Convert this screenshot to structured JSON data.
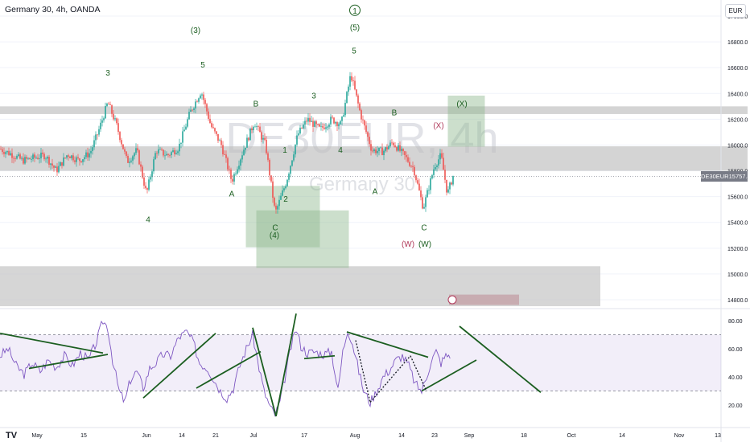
{
  "header": {
    "title": "Germany 30, 4h, OANDA",
    "currency": "EUR"
  },
  "watermark": {
    "symbol": "DE30EUR, 4h",
    "name": "Germany 30"
  },
  "price_tag": {
    "symbol": "DE30EUR",
    "value": "15757.8"
  },
  "logo": "TV",
  "chart_data": [
    {
      "type": "candlestick",
      "title": "Germany 30, 4h, OANDA",
      "y_ticks": [
        "17000.0",
        "16800.0",
        "16600.0",
        "16400.0",
        "16200.0",
        "16000.0",
        "15800.0",
        "15600.0",
        "15400.0",
        "15200.0",
        "15000.0",
        "14800.0"
      ],
      "ylim": [
        14750,
        17050
      ],
      "x_ticks": [
        "May",
        "15",
        "Jun",
        "14",
        "21",
        "Jul",
        "17",
        "Aug",
        "14",
        "23",
        "Sep",
        "18",
        "Oct",
        "14",
        "Nov",
        "13"
      ],
      "last_price": 15757.8,
      "price_path": [
        [
          0,
          15970
        ],
        [
          14,
          15930
        ],
        [
          28,
          15880
        ],
        [
          42,
          15900
        ],
        [
          56,
          15920
        ],
        [
          70,
          15800
        ],
        [
          84,
          15930
        ],
        [
          98,
          15880
        ],
        [
          112,
          15940
        ],
        [
          122,
          16100
        ],
        [
          134,
          16330
        ],
        [
          145,
          16150
        ],
        [
          158,
          15870
        ],
        [
          170,
          15960
        ],
        [
          182,
          15620
        ],
        [
          194,
          15960
        ],
        [
          208,
          15920
        ],
        [
          222,
          15980
        ],
        [
          236,
          16250
        ],
        [
          250,
          16420
        ],
        [
          262,
          16150
        ],
        [
          275,
          16000
        ],
        [
          288,
          15720
        ],
        [
          300,
          15920
        ],
        [
          316,
          16180
        ],
        [
          330,
          16000
        ],
        [
          342,
          15470
        ],
        [
          356,
          15720
        ],
        [
          370,
          16080
        ],
        [
          382,
          16200
        ],
        [
          398,
          16120
        ],
        [
          412,
          16200
        ],
        [
          424,
          16160
        ],
        [
          436,
          16550
        ],
        [
          448,
          16240
        ],
        [
          462,
          15960
        ],
        [
          476,
          15950
        ],
        [
          488,
          16020
        ],
        [
          502,
          15920
        ],
        [
          514,
          15820
        ],
        [
          526,
          15510
        ],
        [
          540,
          15840
        ],
        [
          548,
          15920
        ],
        [
          556,
          15620
        ],
        [
          563,
          15760
        ]
      ],
      "zones": [
        {
          "kind": "resistance",
          "from": 16240,
          "to": 16300,
          "x_start": 0,
          "x_end": 929
        },
        {
          "kind": "resistance",
          "from": 15800,
          "to": 15990,
          "x_start": 0,
          "x_end": 929
        },
        {
          "kind": "support",
          "from": 14750,
          "to": 15060,
          "x_start": 0,
          "x_end": 746
        },
        {
          "kind": "target",
          "from": 15210,
          "to": 15680,
          "x_start": 306,
          "x_end": 397
        },
        {
          "kind": "target",
          "from": 15050,
          "to": 15490,
          "x_start": 319,
          "x_end": 433
        },
        {
          "kind": "target",
          "from": 15990,
          "to": 16380,
          "x_start": 557,
          "x_end": 602
        },
        {
          "kind": "projection",
          "from": 14760,
          "to": 14840,
          "x_start": 558,
          "x_end": 645
        }
      ],
      "wave_labels": [
        {
          "text": "3",
          "x": 134,
          "price": 16540,
          "color": "#1b5e20"
        },
        {
          "text": "(3)",
          "x": 243,
          "price": 16870,
          "color": "#1b5e20"
        },
        {
          "text": "5",
          "x": 252,
          "price": 16600,
          "color": "#1b5e20"
        },
        {
          "text": "4",
          "x": 184,
          "price": 15400,
          "color": "#1b5e20"
        },
        {
          "text": "B",
          "x": 318,
          "price": 16300,
          "color": "#1b5e20"
        },
        {
          "text": "A",
          "x": 288,
          "price": 15600,
          "color": "#1b5e20"
        },
        {
          "text": "3",
          "x": 390,
          "price": 16360,
          "color": "#1b5e20"
        },
        {
          "text": "1",
          "x": 354,
          "price": 15940,
          "color": "#1b5e20"
        },
        {
          "text": "2",
          "x": 355,
          "price": 15560,
          "color": "#1b5e20"
        },
        {
          "text": "C",
          "x": 342,
          "price": 15340,
          "color": "#1b5e20"
        },
        {
          "text": "(4)",
          "x": 341,
          "price": 15280,
          "color": "#1b5e20"
        },
        {
          "text": "4",
          "x": 423,
          "price": 15940,
          "color": "#1b5e20"
        },
        {
          "text": "1",
          "x": 441,
          "price": 17020,
          "color": "#1b5e20",
          "circled": true
        },
        {
          "text": "(5)",
          "x": 441,
          "price": 16890,
          "color": "#1b5e20"
        },
        {
          "text": "5",
          "x": 440,
          "price": 16710,
          "color": "#1b5e20"
        },
        {
          "text": "B",
          "x": 490,
          "price": 16230,
          "color": "#1b5e20"
        },
        {
          "text": "A",
          "x": 466,
          "price": 15620,
          "color": "#1b5e20"
        },
        {
          "text": "(X)",
          "x": 545,
          "price": 16130,
          "color": "#b03a5b"
        },
        {
          "text": "(X)",
          "x": 574,
          "price": 16300,
          "color": "#1b5e20"
        },
        {
          "text": "C",
          "x": 527,
          "price": 15340,
          "color": "#1b5e20"
        },
        {
          "text": "(W)",
          "x": 507,
          "price": 15210,
          "color": "#b03a5b"
        },
        {
          "text": "(W)",
          "x": 528,
          "price": 15210,
          "color": "#1b5e20"
        }
      ]
    },
    {
      "type": "line",
      "title": "",
      "y_ticks": [
        "80.00",
        "60.00",
        "40.00",
        "20.00"
      ],
      "ylim": [
        10,
        87
      ],
      "band": [
        30,
        70
      ],
      "series": [
        {
          "values": [
            [
              0,
              55
            ],
            [
              10,
              60
            ],
            [
              20,
              48
            ],
            [
              30,
              42
            ],
            [
              40,
              50
            ],
            [
              50,
              44
            ],
            [
              60,
              52
            ],
            [
              70,
              47
            ],
            [
              80,
              55
            ],
            [
              90,
              48
            ],
            [
              100,
              57
            ],
            [
              110,
              52
            ],
            [
              120,
              65
            ],
            [
              128,
              80
            ],
            [
              134,
              75
            ],
            [
              140,
              52
            ],
            [
              148,
              30
            ],
            [
              155,
              22
            ],
            [
              162,
              38
            ],
            [
              170,
              44
            ],
            [
              178,
              32
            ],
            [
              186,
              46
            ],
            [
              194,
              50
            ],
            [
              202,
              56
            ],
            [
              212,
              55
            ],
            [
              222,
              68
            ],
            [
              232,
              72
            ],
            [
              240,
              65
            ],
            [
              248,
              50
            ],
            [
              258,
              46
            ],
            [
              266,
              38
            ],
            [
              274,
              30
            ],
            [
              282,
              25
            ],
            [
              290,
              32
            ],
            [
              298,
              48
            ],
            [
              306,
              60
            ],
            [
              314,
              70
            ],
            [
              320,
              52
            ],
            [
              328,
              30
            ],
            [
              336,
              18
            ],
            [
              342,
              13
            ],
            [
              348,
              22
            ],
            [
              356,
              45
            ],
            [
              362,
              62
            ],
            [
              368,
              74
            ],
            [
              374,
              62
            ],
            [
              382,
              57
            ],
            [
              392,
              58
            ],
            [
              402,
              56
            ],
            [
              412,
              58
            ],
            [
              420,
              30
            ],
            [
              426,
              58
            ],
            [
              432,
              74
            ],
            [
              438,
              64
            ],
            [
              446,
              44
            ],
            [
              452,
              30
            ],
            [
              460,
              22
            ],
            [
              468,
              30
            ],
            [
              476,
              40
            ],
            [
              484,
              45
            ],
            [
              492,
              52
            ],
            [
              500,
              55
            ],
            [
              508,
              48
            ],
            [
              516,
              35
            ],
            [
              524,
              30
            ],
            [
              530,
              40
            ],
            [
              536,
              52
            ],
            [
              542,
              58
            ],
            [
              548,
              50
            ],
            [
              554,
              55
            ],
            [
              561,
              56
            ]
          ]
        }
      ],
      "trendlines": [
        [
          0,
          71,
          128,
          57
        ],
        [
          36,
          46,
          134,
          56
        ],
        [
          178,
          25,
          268,
          71
        ],
        [
          244,
          32,
          324,
          58
        ],
        [
          314,
          75,
          343,
          12
        ],
        [
          343,
          12,
          368,
          85
        ],
        [
          378,
          53,
          416,
          55
        ],
        [
          431,
          72,
          532,
          54
        ],
        [
          524,
          30,
          592,
          52
        ],
        [
          571,
          76,
          672,
          29
        ]
      ],
      "dotted_lines": [
        [
          442,
          66,
          460,
          22
        ],
        [
          460,
          22,
          510,
          55
        ],
        [
          510,
          55,
          530,
          30
        ]
      ]
    }
  ]
}
